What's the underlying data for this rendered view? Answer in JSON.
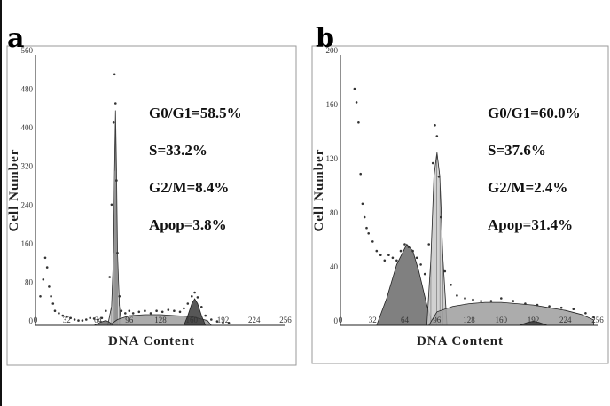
{
  "figure": {
    "colors": {
      "frame": "#9a9a9a",
      "axis": "#222222",
      "apop_fill": "#6a6a6a",
      "g1_fill": "#c9c9c9",
      "s_fill": "#9e9e9e",
      "g2_fill": "#3a3a3a",
      "dots": "#333333"
    }
  },
  "chart_data": [
    {
      "panel": "a",
      "type": "area",
      "xlabel": "DNA  Content",
      "ylabel": "Cell  Number",
      "xlim": [
        0,
        256
      ],
      "ylim": [
        0,
        560
      ],
      "x_ticks": [
        "0",
        "32",
        "64",
        "96",
        "128",
        "160",
        "192",
        "224",
        "256"
      ],
      "y_ticks": [
        "0",
        "80",
        "160",
        "240",
        "320",
        "400",
        "480",
        "560"
      ],
      "stats": [
        "G0/G1=58.5%",
        "S=33.2%",
        "G2/M=8.4%",
        "Apop=3.8%"
      ],
      "series": [
        {
          "name": "G0/G1",
          "x": [
            74,
            78,
            80,
            81,
            82,
            83,
            84,
            86,
            88
          ],
          "values": [
            0,
            40,
            150,
            320,
            445,
            320,
            150,
            40,
            0
          ]
        },
        {
          "name": "S",
          "x": [
            76,
            84,
            96,
            112,
            128,
            144,
            160,
            176,
            180
          ],
          "values": [
            0,
            12,
            20,
            22,
            22,
            20,
            18,
            10,
            0
          ]
        },
        {
          "name": "G2/M",
          "x": [
            152,
            156,
            160,
            163,
            166,
            170,
            174
          ],
          "values": [
            0,
            20,
            45,
            55,
            45,
            20,
            0
          ]
        },
        {
          "name": "Apop",
          "x": [
            60,
            66,
            72,
            76,
            80
          ],
          "values": [
            0,
            6,
            10,
            6,
            0
          ]
        },
        {
          "name": "Data",
          "x": [
            5,
            8,
            10,
            12,
            14,
            16,
            18,
            20,
            24,
            28,
            32,
            36,
            40,
            44,
            48,
            52,
            56,
            60,
            64,
            68,
            72,
            76,
            78,
            80,
            81,
            82,
            83,
            84,
            86,
            88,
            92,
            96,
            100,
            106,
            112,
            118,
            124,
            130,
            136,
            142,
            148,
            152,
            156,
            160,
            163,
            166,
            170,
            174,
            180,
            186,
            192,
            198
          ],
          "values": [
            60,
            95,
            140,
            120,
            80,
            60,
            45,
            30,
            25,
            20,
            18,
            15,
            12,
            10,
            10,
            12,
            15,
            14,
            12,
            15,
            30,
            100,
            250,
            420,
            520,
            460,
            300,
            150,
            60,
            30,
            25,
            30,
            25,
            28,
            30,
            25,
            30,
            28,
            32,
            30,
            28,
            35,
            45,
            60,
            68,
            58,
            38,
            20,
            12,
            8,
            6,
            5
          ]
        }
      ]
    },
    {
      "panel": "b",
      "type": "area",
      "xlabel": "DNA  Content",
      "ylabel": "Cell  Number",
      "xlim": [
        0,
        256
      ],
      "ylim": [
        0,
        200
      ],
      "x_ticks": [
        "0",
        "32",
        "64",
        "96",
        "128",
        "160",
        "192",
        "224",
        "256"
      ],
      "y_ticks": [
        "0",
        "40",
        "80",
        "120",
        "160",
        "200"
      ],
      "stats": [
        "G0/G1=60.0%",
        "S=37.6%",
        "G2/M=2.4%",
        "Apop=31.4%"
      ],
      "series": [
        {
          "name": "Apop",
          "x": [
            36,
            46,
            56,
            66,
            72,
            78,
            86,
            92
          ],
          "values": [
            0,
            20,
            45,
            60,
            55,
            40,
            15,
            0
          ]
        },
        {
          "name": "G0/G1",
          "x": [
            86,
            90,
            93,
            96,
            99,
            102,
            106
          ],
          "values": [
            0,
            50,
            110,
            128,
            110,
            50,
            0
          ]
        },
        {
          "name": "S",
          "x": [
            88,
            96,
            112,
            128,
            144,
            160,
            176,
            192,
            208,
            224,
            240,
            252
          ],
          "values": [
            0,
            10,
            14,
            16,
            17,
            17,
            16,
            15,
            13,
            11,
            8,
            4
          ]
        },
        {
          "name": "G2/M",
          "x": [
            178,
            186,
            192,
            198,
            206
          ],
          "values": [
            0,
            2,
            3,
            2,
            0
          ]
        },
        {
          "name": "Data",
          "x": [
            14,
            16,
            18,
            20,
            22,
            24,
            26,
            28,
            32,
            36,
            40,
            44,
            48,
            52,
            56,
            60,
            64,
            68,
            72,
            76,
            80,
            84,
            88,
            92,
            94,
            96,
            98,
            100,
            104,
            110,
            116,
            124,
            132,
            140,
            150,
            160,
            172,
            184,
            196,
            208,
            220,
            232,
            244,
            252
          ],
          "values": [
            175,
            165,
            150,
            112,
            90,
            80,
            72,
            68,
            62,
            55,
            52,
            48,
            52,
            50,
            48,
            55,
            60,
            58,
            55,
            50,
            45,
            38,
            60,
            120,
            148,
            140,
            110,
            80,
            40,
            30,
            22,
            20,
            19,
            18,
            18,
            20,
            18,
            16,
            15,
            14,
            13,
            12,
            9,
            6
          ]
        }
      ]
    }
  ]
}
